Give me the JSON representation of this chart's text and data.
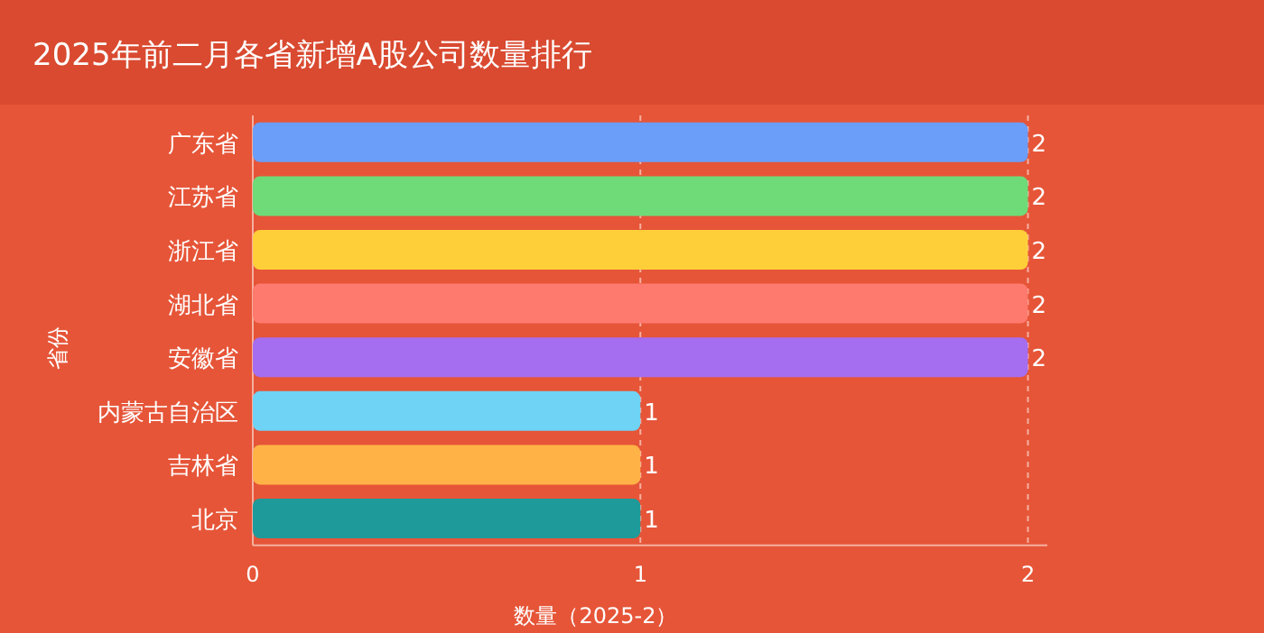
{
  "chart_data": {
    "type": "bar",
    "orientation": "horizontal",
    "title": "2025年前二月各省新增A股公司数量排行",
    "xlabel": "数量（2025-2）",
    "ylabel": "省份",
    "categories": [
      "广东省",
      "江苏省",
      "浙江省",
      "湖北省",
      "安徽省",
      "内蒙古自治区",
      "吉林省",
      "北京"
    ],
    "values": [
      2,
      2,
      2,
      2,
      2,
      1,
      1,
      1
    ],
    "colors": [
      "#6b9ef8",
      "#6fdb78",
      "#ffcf3a",
      "#ff7a6e",
      "#a56ef0",
      "#6fd3f5",
      "#ffb347",
      "#1e9a9a"
    ],
    "xlim": [
      0,
      2.05
    ],
    "xticks": [
      0,
      1,
      2
    ],
    "grid": "x",
    "data_labels": true
  }
}
